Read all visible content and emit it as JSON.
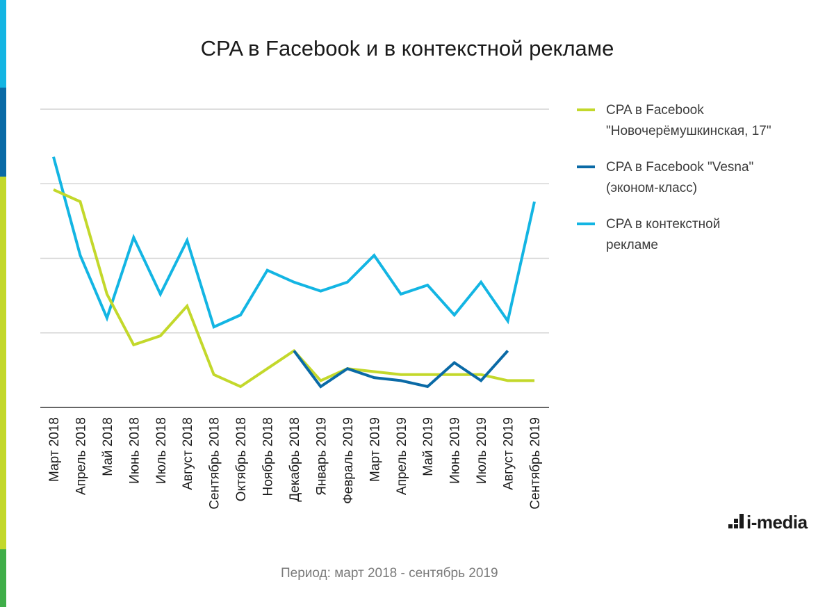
{
  "accent_colors": [
    "#13b5e3",
    "#0a6aa6",
    "#c3d82b",
    "#3fae49"
  ],
  "chart_data": {
    "type": "line",
    "title": "CPA в Facebook и в контекстной рекламе",
    "xlabel": "",
    "ylabel": "",
    "y_ticks_labeled": false,
    "grid": true,
    "ylim": [
      0,
      100
    ],
    "legend_position": "right",
    "categories": [
      "Март 2018",
      "Апрель 2018",
      "Май 2018",
      "Июнь 2018",
      "Июль 2018",
      "Август 2018",
      "Сентябрь 2018",
      "Октябрь 2018",
      "Ноябрь 2018",
      "Декабрь 2018",
      "Январь 2019",
      "Февраль 2019",
      "Март 2019",
      "Апрель 2019",
      "Май 2019",
      "Июнь 2019",
      "Июль 2019",
      "Август 2019",
      "Сентябрь 2019"
    ],
    "series": [
      {
        "name": "CPA в Facebook\n\"Новочерёмушкинская, 17\"",
        "color": "#c3d82b",
        "values": [
          73,
          69,
          38,
          21,
          24,
          34,
          11,
          7,
          13,
          19,
          9,
          13,
          12,
          11,
          11,
          11,
          11,
          9,
          9
        ]
      },
      {
        "name": "CPA в Facebook \"Vesna\"\n(эконом-класс)",
        "color": "#0a6aa6",
        "values": [
          null,
          null,
          null,
          null,
          null,
          null,
          null,
          null,
          null,
          19,
          7,
          13,
          10,
          9,
          7,
          15,
          9,
          19,
          null
        ]
      },
      {
        "name": "CPA в контекстной\nрекламе",
        "color": "#13b5e3",
        "values": [
          84,
          51,
          30,
          57,
          38,
          56,
          27,
          31,
          46,
          42,
          39,
          42,
          51,
          38,
          41,
          31,
          42,
          29,
          69
        ]
      }
    ]
  },
  "logo": {
    "text": "i-media"
  },
  "footnote": "Период: март 2018 - сентябрь 2019"
}
